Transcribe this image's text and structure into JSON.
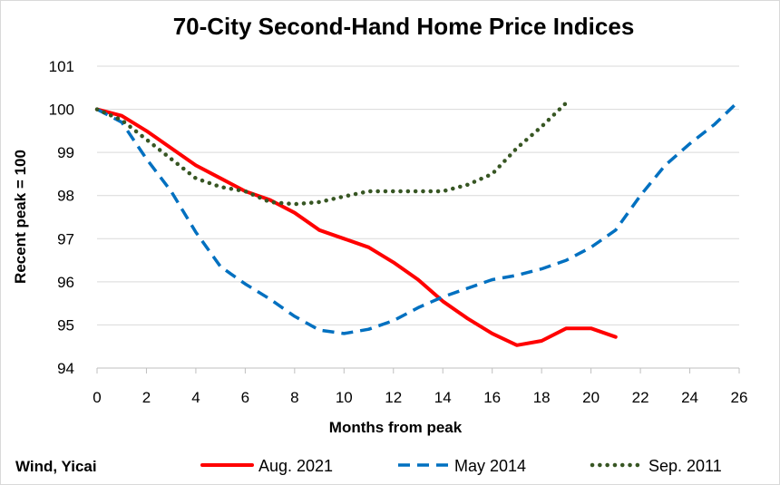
{
  "chart_data": {
    "type": "line",
    "title": "70-City Second-Hand Home Price Indices",
    "xlabel": "Months from peak",
    "ylabel": "Recent peak = 100",
    "xlim": [
      0,
      26
    ],
    "ylim": [
      94,
      101
    ],
    "x_ticks": [
      0,
      2,
      4,
      6,
      8,
      10,
      12,
      14,
      16,
      18,
      20,
      22,
      24,
      26
    ],
    "y_ticks": [
      94,
      95,
      96,
      97,
      98,
      99,
      100,
      101
    ],
    "grid": "horizontal",
    "legend_position": "bottom",
    "source": "Wind, Yicai",
    "series": [
      {
        "name": "Aug. 2021",
        "color": "#ff0000",
        "style": "solid",
        "x": [
          0,
          1,
          2,
          3,
          4,
          5,
          6,
          7,
          8,
          9,
          10,
          11,
          12,
          13,
          14,
          15,
          16,
          17,
          18,
          19,
          20,
          21
        ],
        "values": [
          100,
          99.85,
          99.5,
          99.1,
          98.7,
          98.4,
          98.1,
          97.9,
          97.6,
          97.2,
          97.0,
          96.8,
          96.45,
          96.05,
          95.55,
          95.15,
          94.8,
          94.53,
          94.63,
          94.92,
          94.92,
          94.72
        ]
      },
      {
        "name": "May 2014",
        "color": "#0070c0",
        "style": "dashed",
        "x": [
          0,
          1,
          2,
          3,
          4,
          5,
          6,
          7,
          8,
          9,
          10,
          11,
          12,
          13,
          14,
          15,
          16,
          17,
          18,
          19,
          20,
          21,
          22,
          23,
          24,
          25,
          26
        ],
        "values": [
          100,
          99.7,
          98.85,
          98.1,
          97.15,
          96.35,
          95.95,
          95.6,
          95.2,
          94.88,
          94.8,
          94.9,
          95.1,
          95.4,
          95.65,
          95.85,
          96.05,
          96.15,
          96.3,
          96.5,
          96.8,
          97.2,
          98.0,
          98.7,
          99.2,
          99.65,
          100.2
        ]
      },
      {
        "name": "Sep. 2011",
        "color": "#375623",
        "style": "dotted",
        "x": [
          0,
          1,
          2,
          3,
          4,
          5,
          6,
          7,
          8,
          9,
          10,
          11,
          12,
          13,
          14,
          15,
          16,
          17,
          18,
          19
        ],
        "values": [
          100,
          99.75,
          99.3,
          98.85,
          98.4,
          98.2,
          98.1,
          97.85,
          97.8,
          97.85,
          97.98,
          98.1,
          98.1,
          98.1,
          98.1,
          98.25,
          98.5,
          99.1,
          99.6,
          100.15
        ]
      }
    ]
  }
}
